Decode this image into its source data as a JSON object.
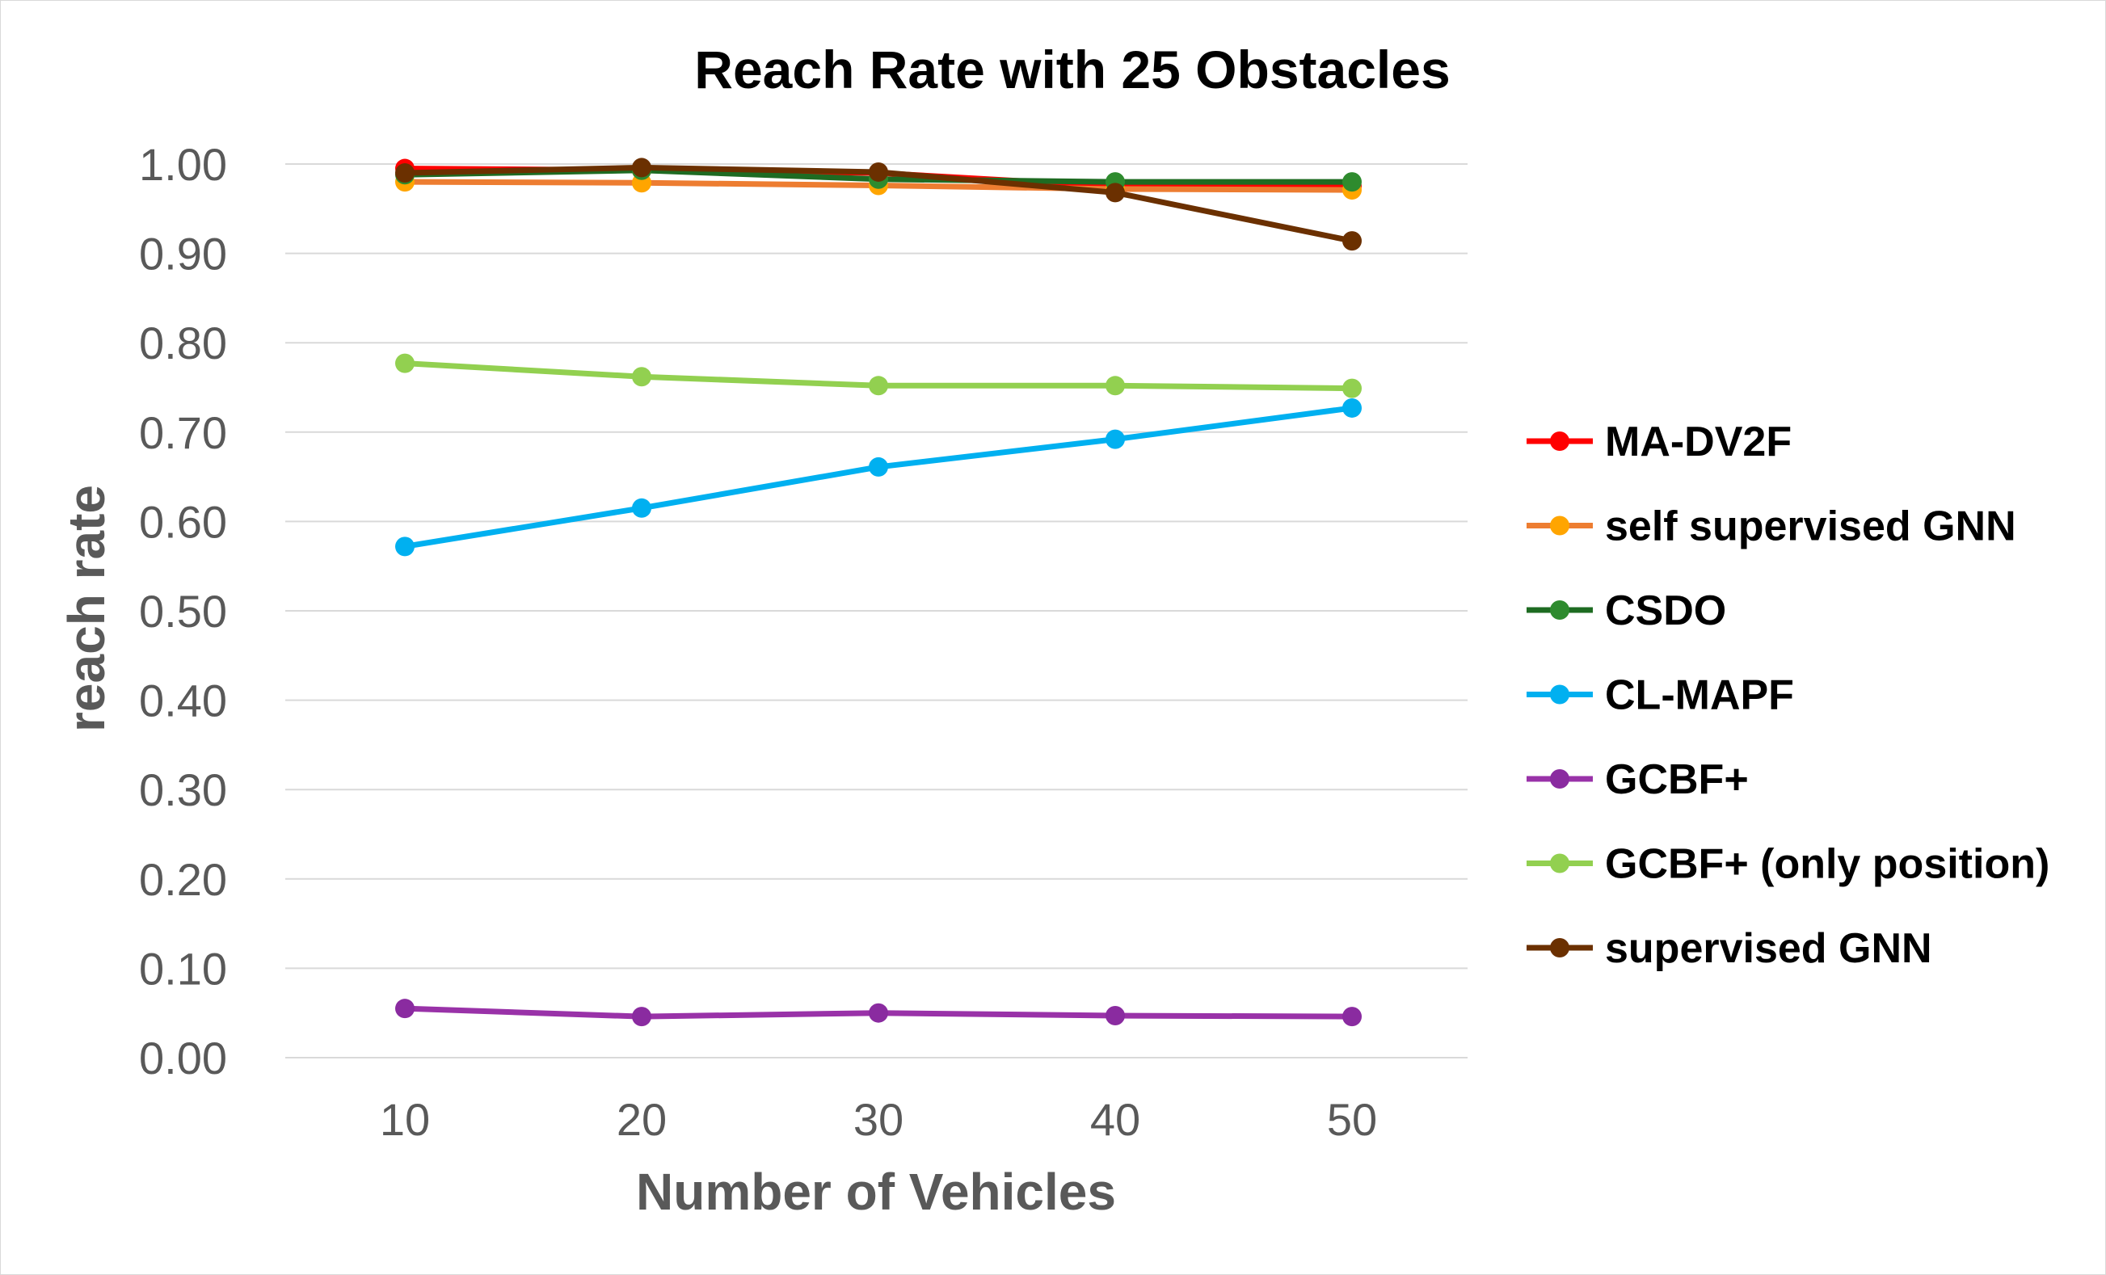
{
  "chart_data": {
    "type": "line",
    "title": "Reach Rate with 25 Obstacles",
    "xlabel": "Number of Vehicles",
    "ylabel": "reach rate",
    "x": [
      10,
      20,
      30,
      40,
      50
    ],
    "x_tick_labels": [
      "10",
      "20",
      "30",
      "40",
      "50"
    ],
    "ylim": [
      0,
      1
    ],
    "y_tick_labels": [
      "0.00",
      "0.10",
      "0.20",
      "0.30",
      "0.40",
      "0.50",
      "0.60",
      "0.70",
      "0.80",
      "0.90",
      "1.00"
    ],
    "grid": "horizontal",
    "legend_position": "right",
    "series": [
      {
        "name": "MA-DV2F",
        "color": "#ff0000",
        "values": [
          0.995,
          0.993,
          0.99,
          0.975,
          0.975
        ]
      },
      {
        "name": "self supervised GNN",
        "color": "#ed7d31",
        "marker_color": "#ffa500",
        "values": [
          0.98,
          0.979,
          0.976,
          0.972,
          0.971
        ]
      },
      {
        "name": "CSDO",
        "color": "#1e6b22",
        "marker_color": "#2e8b2e",
        "values": [
          0.988,
          0.993,
          0.983,
          0.98,
          0.98
        ]
      },
      {
        "name": "CL-MAPF",
        "color": "#00b0f0",
        "values": [
          0.572,
          0.615,
          0.661,
          0.692,
          0.727
        ]
      },
      {
        "name": "GCBF+",
        "color": "#9932a8",
        "marker_color": "#8a2ba0",
        "values": [
          0.055,
          0.046,
          0.05,
          0.047,
          0.046
        ]
      },
      {
        "name": "GCBF+ (only position)",
        "color": "#92d050",
        "values": [
          0.777,
          0.762,
          0.752,
          0.752,
          0.749
        ]
      },
      {
        "name": "supervised GNN",
        "color": "#6b3000",
        "marker_color": "#6b3000",
        "values": [
          0.99,
          0.996,
          0.991,
          0.968,
          0.914
        ]
      }
    ]
  }
}
